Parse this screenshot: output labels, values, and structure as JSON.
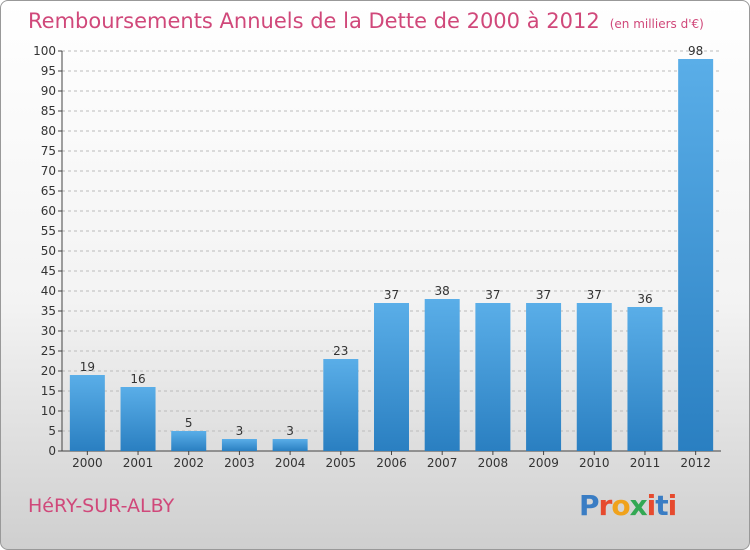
{
  "header": {
    "title": "Remboursements Annuels de la Dette de 2000 à 2012",
    "unit": "(en milliers d'€)"
  },
  "footer": {
    "place": "HéRY-SUR-ALBY",
    "logo": "Proxiti",
    "logo_colors": [
      "#3a7dc4",
      "#e64a2e",
      "#f0a21c",
      "#33a853",
      "#e64a2e",
      "#3a7dc4",
      "#e64a2e"
    ]
  },
  "colors": {
    "title": "#d0487a",
    "bar_top": "#5aaee8",
    "bar_bottom": "#2a7fc1",
    "grid": "#bbbbbb"
  },
  "chart_data": {
    "type": "bar",
    "title": "Remboursements Annuels de la Dette de 2000 à 2012",
    "subtitle": "(en milliers d'€)",
    "categories": [
      "2000",
      "2001",
      "2002",
      "2003",
      "2004",
      "2005",
      "2006",
      "2007",
      "2008",
      "2009",
      "2010",
      "2011",
      "2012"
    ],
    "values": [
      19,
      16,
      5,
      3,
      3,
      23,
      37,
      38,
      37,
      37,
      37,
      36,
      98
    ],
    "ylim": [
      0,
      100
    ],
    "ytick_step": 5,
    "grid": true
  }
}
